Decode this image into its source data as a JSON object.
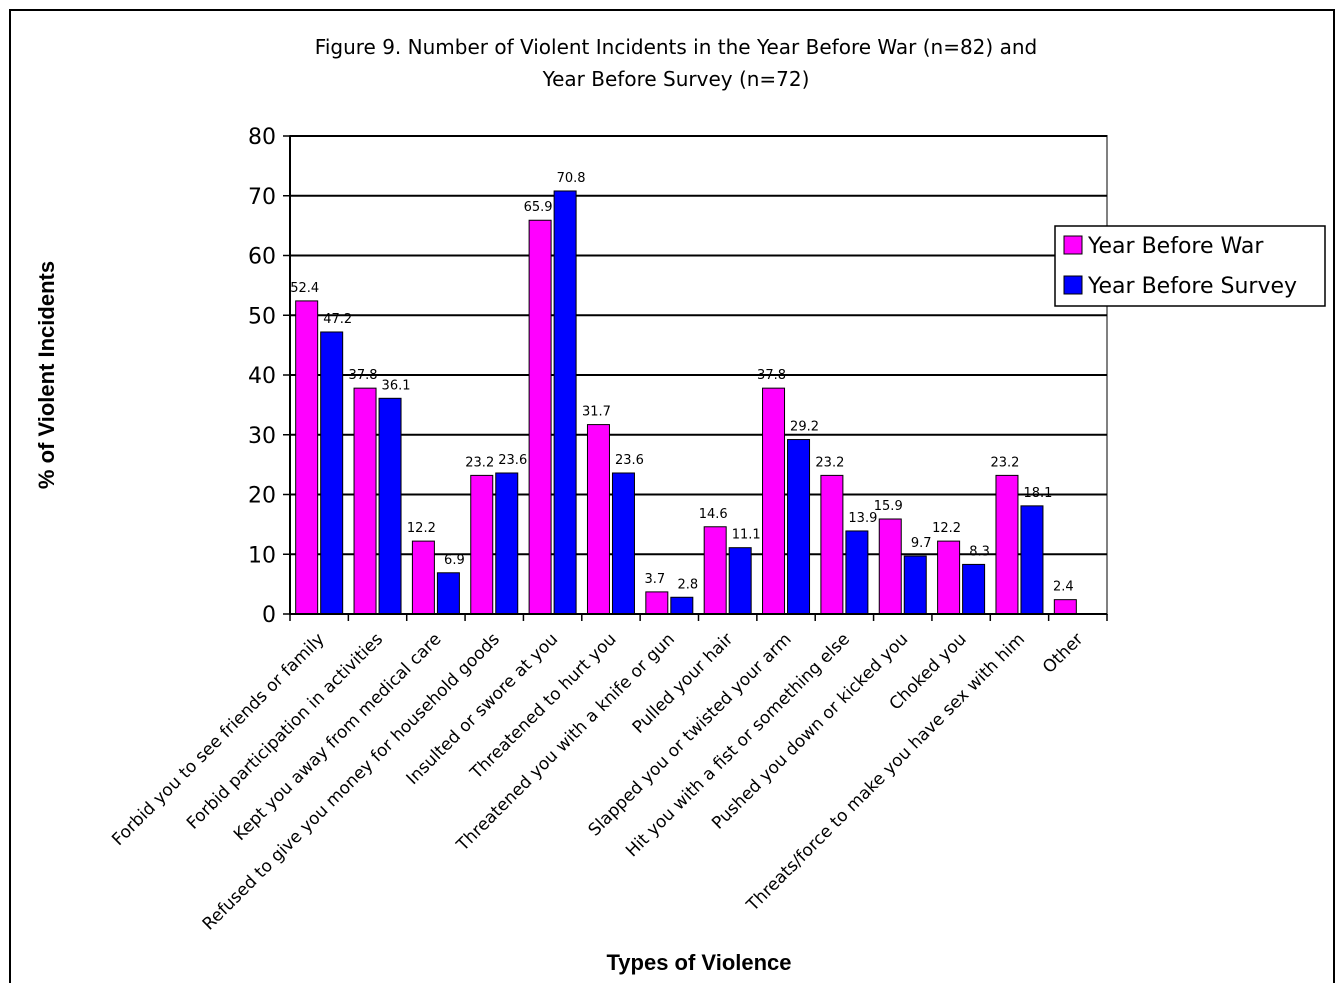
{
  "chart_data": {
    "type": "bar",
    "title": "Figure 9. Number of Violent Incidents in the Year Before War (n=82) and Year Before Survey (n=72)",
    "title_lines": [
      "Figure 9. Number of Violent Incidents in the Year Before War (n=82) and",
      "Year Before Survey (n=72)"
    ],
    "xlabel": "Types of Violence",
    "ylabel": "% of Violent Incidents",
    "ylim": [
      0,
      80
    ],
    "yticks": [
      "0",
      "10",
      "20",
      "30",
      "40",
      "50",
      "60",
      "70",
      "80"
    ],
    "grid": true,
    "legend_position": "right",
    "categories": [
      "Forbid you to see friends or family",
      "Forbid participation in activities",
      "Kept you away from medical care",
      "Refused to give you money for household goods",
      "Insulted or swore at you",
      "Threatened to hurt you",
      "Threatened you with a knife or gun",
      "Pulled your hair",
      "Slapped you or twisted your arm",
      "Hit you with a fist or something else",
      "Pushed you down or kicked you",
      "Choked you",
      "Threats/force to make you have sex with him",
      "Other"
    ],
    "series": [
      {
        "name": "Year Before War",
        "color": "#ff00ff",
        "values": [
          52.4,
          37.8,
          12.2,
          23.2,
          65.9,
          31.7,
          3.7,
          14.6,
          37.8,
          23.2,
          15.9,
          12.2,
          23.2,
          2.4
        ],
        "labels": [
          "52.4",
          "37.8",
          "12.2",
          "23.2",
          "65.9",
          "31.7",
          "3.7",
          "14.6",
          "37.8",
          "23.2",
          "15.9",
          "12.2",
          "23.2",
          "2.4"
        ]
      },
      {
        "name": "Year Before Survey",
        "color": "#0000ff",
        "values": [
          47.2,
          36.1,
          6.9,
          23.6,
          70.8,
          23.6,
          2.8,
          11.1,
          29.2,
          13.9,
          9.7,
          8.3,
          18.1,
          null
        ],
        "labels": [
          "47.2",
          "36.1",
          "6.9",
          "23.6",
          "70.8",
          "23.6",
          "2.8",
          "11.1",
          "29.2",
          "13.9",
          "9.7",
          "8.3",
          "18.1",
          null
        ]
      }
    ]
  }
}
